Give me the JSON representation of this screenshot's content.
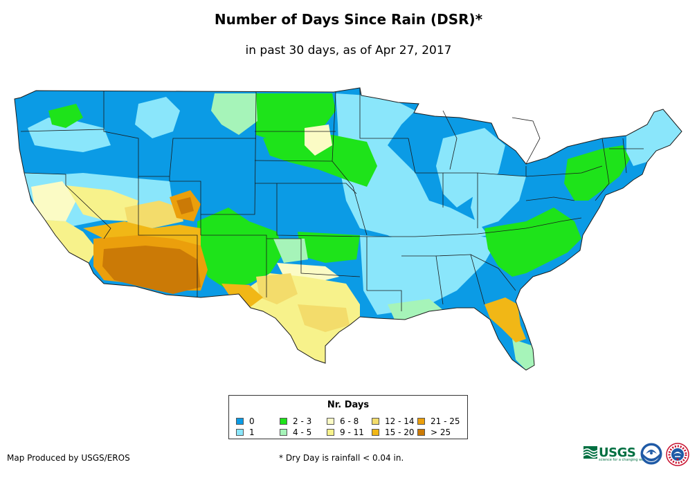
{
  "title": "Number of Days Since Rain (DSR)*",
  "subtitle": "in past 30 days, as of Apr 27, 2017",
  "legend": {
    "title": "Nr. Days",
    "items": [
      {
        "label": "0",
        "color": "#0b9be5"
      },
      {
        "label": "1",
        "color": "#8ae6fb"
      },
      {
        "label": "2 - 3",
        "color": "#1ee31a"
      },
      {
        "label": "4 - 5",
        "color": "#a6f4b9"
      },
      {
        "label": "6 - 8",
        "color": "#fbfbc5"
      },
      {
        "label": "9 - 11",
        "color": "#f7f28b"
      },
      {
        "label": "12 - 14",
        "color": "#f3dc6b"
      },
      {
        "label": "15 - 20",
        "color": "#f1b716"
      },
      {
        "label": "21 - 25",
        "color": "#eb9f0c"
      },
      {
        "label": "> 25",
        "color": "#cb7a06"
      }
    ]
  },
  "credit": "Map Produced by USGS/EROS",
  "footnote": "* Dry Day is rainfall < 0.04 in.",
  "logos": {
    "usgs": "USGS",
    "usgs_tagline": "science for a changing world",
    "noaa": "NOAA",
    "nws": "NWS"
  },
  "map": {
    "region": "Contiguous United States",
    "state_border_color": "#1a1a1a",
    "background_class_color": "#0b9be5"
  }
}
